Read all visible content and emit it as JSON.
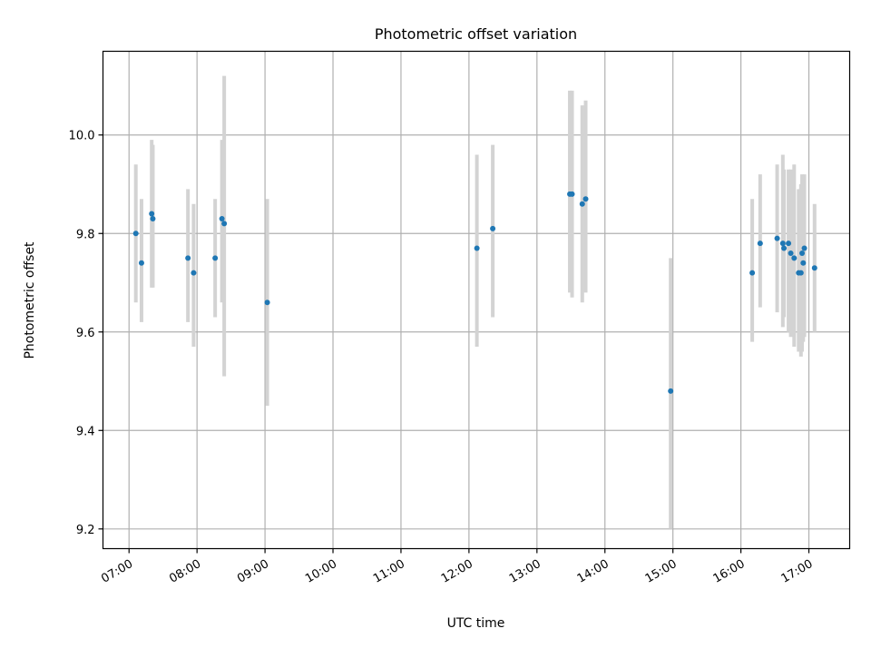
{
  "chart_data": {
    "type": "scatter",
    "title": "Photometric offset variation",
    "xlabel": "UTC time",
    "ylabel": "Photometric offset",
    "x_format": "HH:MM",
    "xlim": [
      "06:37",
      "17:36"
    ],
    "ylim": [
      9.16,
      10.17
    ],
    "x_ticks": [
      "07:00",
      "08:00",
      "09:00",
      "10:00",
      "11:00",
      "12:00",
      "13:00",
      "14:00",
      "15:00",
      "16:00",
      "17:00"
    ],
    "y_ticks": [
      9.2,
      9.4,
      9.6,
      9.8,
      10.0
    ],
    "grid": true,
    "legend": "none",
    "colors": {
      "point": "#1f77b4",
      "errorbar": "#d3d3d3",
      "grid": "#b0b0b0"
    },
    "points": [
      {
        "x": "07:06",
        "y": 9.8,
        "ylow": 9.66,
        "yhigh": 9.94
      },
      {
        "x": "07:11",
        "y": 9.74,
        "ylow": 9.62,
        "yhigh": 9.87
      },
      {
        "x": "07:20",
        "y": 9.84,
        "ylow": 9.69,
        "yhigh": 9.99
      },
      {
        "x": "07:21",
        "y": 9.83,
        "ylow": 9.69,
        "yhigh": 9.98
      },
      {
        "x": "07:52",
        "y": 9.75,
        "ylow": 9.62,
        "yhigh": 9.89
      },
      {
        "x": "07:57",
        "y": 9.72,
        "ylow": 9.57,
        "yhigh": 9.86
      },
      {
        "x": "08:16",
        "y": 9.75,
        "ylow": 9.63,
        "yhigh": 9.87
      },
      {
        "x": "08:22",
        "y": 9.83,
        "ylow": 9.66,
        "yhigh": 9.99
      },
      {
        "x": "08:24",
        "y": 9.82,
        "ylow": 9.51,
        "yhigh": 10.12
      },
      {
        "x": "09:02",
        "y": 9.66,
        "ylow": 9.45,
        "yhigh": 9.87
      },
      {
        "x": "12:07",
        "y": 9.77,
        "ylow": 9.57,
        "yhigh": 9.96
      },
      {
        "x": "12:21",
        "y": 9.81,
        "ylow": 9.63,
        "yhigh": 9.98
      },
      {
        "x": "13:29",
        "y": 9.88,
        "ylow": 9.68,
        "yhigh": 10.09
      },
      {
        "x": "13:31",
        "y": 9.88,
        "ylow": 9.67,
        "yhigh": 10.09
      },
      {
        "x": "13:40",
        "y": 9.86,
        "ylow": 9.66,
        "yhigh": 10.06
      },
      {
        "x": "13:43",
        "y": 9.87,
        "ylow": 9.68,
        "yhigh": 10.07
      },
      {
        "x": "14:58",
        "y": 9.48,
        "ylow": 9.2,
        "yhigh": 9.75
      },
      {
        "x": "16:10",
        "y": 9.72,
        "ylow": 9.58,
        "yhigh": 9.87
      },
      {
        "x": "16:17",
        "y": 9.78,
        "ylow": 9.65,
        "yhigh": 9.92
      },
      {
        "x": "16:32",
        "y": 9.79,
        "ylow": 9.64,
        "yhigh": 9.94
      },
      {
        "x": "16:37",
        "y": 9.78,
        "ylow": 9.61,
        "yhigh": 9.96
      },
      {
        "x": "16:38",
        "y": 9.77,
        "ylow": 9.63,
        "yhigh": 9.93
      },
      {
        "x": "16:42",
        "y": 9.78,
        "ylow": 9.6,
        "yhigh": 9.93
      },
      {
        "x": "16:44",
        "y": 9.76,
        "ylow": 9.59,
        "yhigh": 9.93
      },
      {
        "x": "16:47",
        "y": 9.75,
        "ylow": 9.57,
        "yhigh": 9.94
      },
      {
        "x": "16:51",
        "y": 9.72,
        "ylow": 9.56,
        "yhigh": 9.89
      },
      {
        "x": "16:53",
        "y": 9.72,
        "ylow": 9.55,
        "yhigh": 9.9
      },
      {
        "x": "16:54",
        "y": 9.76,
        "ylow": 9.56,
        "yhigh": 9.92
      },
      {
        "x": "16:55",
        "y": 9.74,
        "ylow": 9.58,
        "yhigh": 9.9
      },
      {
        "x": "16:56",
        "y": 9.77,
        "ylow": 9.59,
        "yhigh": 9.92
      },
      {
        "x": "17:05",
        "y": 9.73,
        "ylow": 9.6,
        "yhigh": 9.86
      }
    ]
  }
}
